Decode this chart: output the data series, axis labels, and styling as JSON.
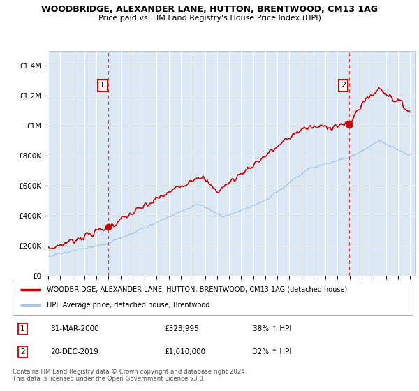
{
  "title": "WOODBRIDGE, ALEXANDER LANE, HUTTON, BRENTWOOD, CM13 1AG",
  "subtitle": "Price paid vs. HM Land Registry's House Price Index (HPI)",
  "legend_line1": "WOODBRIDGE, ALEXANDER LANE, HUTTON, BRENTWOOD, CM13 1AG (detached house)",
  "legend_line2": "HPI: Average price, detached house, Brentwood",
  "annotation1_label": "1",
  "annotation1_date": "31-MAR-2000",
  "annotation1_price": "£323,995",
  "annotation1_hpi": "38% ↑ HPI",
  "annotation2_label": "2",
  "annotation2_date": "20-DEC-2019",
  "annotation2_price": "£1,010,000",
  "annotation2_hpi": "32% ↑ HPI",
  "footer": "Contains HM Land Registry data © Crown copyright and database right 2024.\nThis data is licensed under the Open Government Licence v3.0.",
  "background_color": "#dce9f5",
  "line_color_red": "#cc0000",
  "line_color_blue": "#a8c8e8",
  "sale1_x": 2000.0,
  "sale1_y": 323995,
  "sale2_x": 2019.96,
  "sale2_y": 1010000,
  "xlim": [
    1995,
    2025.4
  ],
  "ylim": [
    0,
    1500000
  ]
}
